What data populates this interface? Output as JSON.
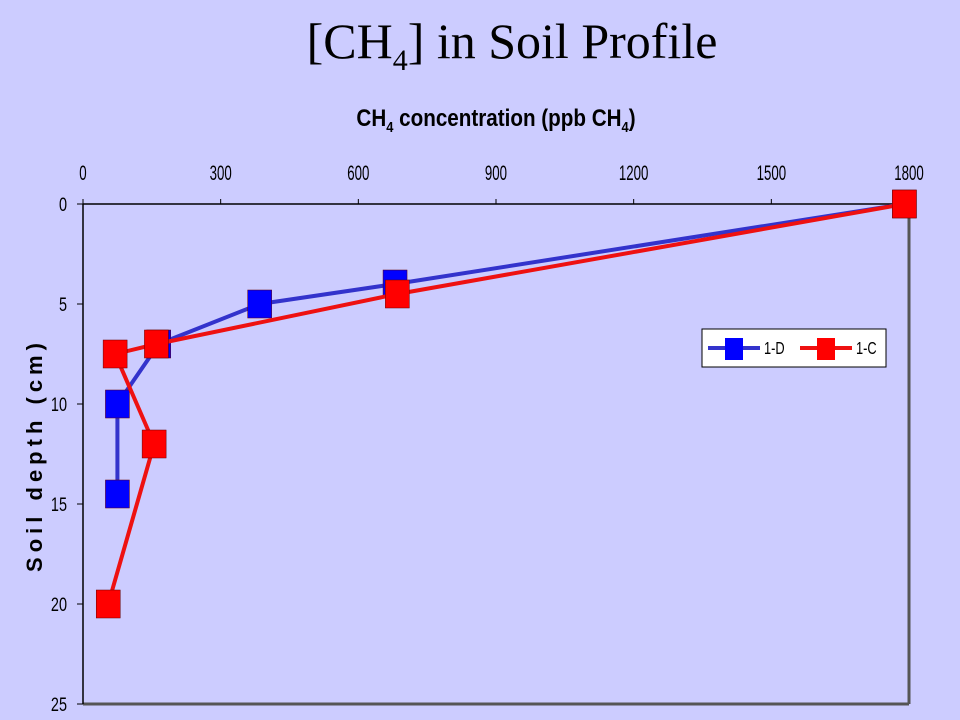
{
  "slide": {
    "title_prefix": "[CH",
    "title_sub": "4",
    "title_suffix": "] in Soil Profile"
  },
  "chart_data": {
    "type": "line",
    "x_label_parts": [
      "CH",
      "4",
      " concentration (ppb CH",
      "4",
      ")"
    ],
    "y_label": "Soil depth (cm)",
    "x_axis_position": "top",
    "y_axis_inverted": true,
    "xlim": [
      0,
      1800
    ],
    "ylim": [
      0,
      25
    ],
    "x_ticks": [
      0,
      300,
      600,
      900,
      1200,
      1500,
      1800
    ],
    "y_ticks": [
      0,
      5,
      10,
      15,
      20,
      25
    ],
    "grid": false,
    "legend_placement": "right",
    "series": [
      {
        "name": "1-D",
        "color": "#0000ff",
        "line_color": "#3333cc",
        "marker": "square",
        "points": [
          {
            "x": 1790,
            "y": 0
          },
          {
            "x": 680,
            "y": 4
          },
          {
            "x": 385,
            "y": 5
          },
          {
            "x": 165,
            "y": 7
          },
          {
            "x": 75,
            "y": 10
          },
          {
            "x": 75,
            "y": 14.5
          }
        ]
      },
      {
        "name": "1-C",
        "color": "#ff0000",
        "line_color": "#ee1111",
        "marker": "square",
        "points": [
          {
            "x": 1790,
            "y": 0
          },
          {
            "x": 685,
            "y": 4.5
          },
          {
            "x": 160,
            "y": 7
          },
          {
            "x": 70,
            "y": 7.5
          },
          {
            "x": 155,
            "y": 12
          },
          {
            "x": 55,
            "y": 20
          }
        ]
      }
    ]
  }
}
